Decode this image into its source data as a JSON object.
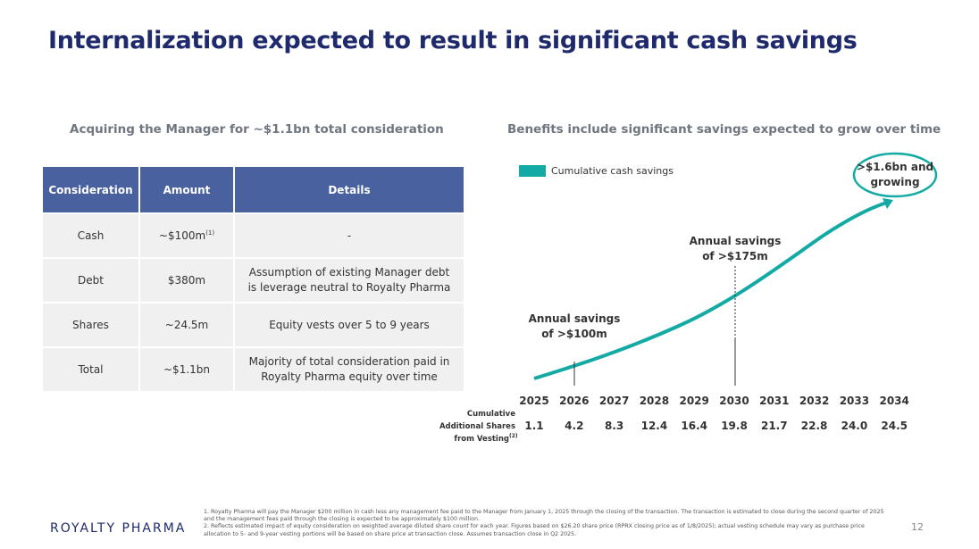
{
  "header": {
    "title": "Internalization expected to result in significant cash savings"
  },
  "left": {
    "heading": "Acquiring the Manager for ~$1.1bn total consideration",
    "table": {
      "columns": [
        "Consideration",
        "Amount",
        "Details"
      ],
      "rows": [
        {
          "consideration": "Cash",
          "amount": "~$100m",
          "note": "(1)",
          "details": "-"
        },
        {
          "consideration": "Debt",
          "amount": "$380m",
          "details": "Assumption of existing Manager debt is leverage neutral to Royalty Pharma"
        },
        {
          "consideration": "Shares",
          "amount": "~24.5m",
          "details": "Equity vests over 5 to 9 years"
        },
        {
          "consideration": "Total",
          "amount": "~$1.1bn",
          "details": "Majority of total consideration paid in Royalty Pharma equity over time"
        }
      ]
    }
  },
  "right": {
    "heading": "Benefits include significant savings expected to grow over time",
    "legend": "Cumulative cash savings",
    "callouts": [
      "Annual savings of >$100m",
      "Annual savings of >$175m",
      ">$1.6bn and growing"
    ],
    "years": [
      "2025",
      "2026",
      "2027",
      "2028",
      "2029",
      "2030",
      "2031",
      "2032",
      "2033",
      "2034"
    ],
    "shares_label": "Cumulative Additional Shares from Vesting",
    "shares_note": "(2)",
    "shares": [
      "1.1",
      "4.2",
      "8.3",
      "12.4",
      "16.4",
      "19.8",
      "21.7",
      "22.8",
      "24.0",
      "24.5"
    ]
  },
  "footer": {
    "logo": "ROYALTY PHARMA",
    "page": "12",
    "footnotes": [
      "1.  Royalty Pharma will pay the Manager $200 million in cash less any management fee paid to the Manager from January 1, 2025 through the closing of the transaction. The transaction is estimated to close during the second quarter of 2025 and the management fees paid through the closing is expected to be approximately $100 million.",
      "2.  Reflects estimated impact of equity consideration on weighted average diluted share count for each year. Figures based on $26.20 share price (RPRX closing price as of 1/8/2025); actual vesting schedule may vary as purchase price allocation to 5- and 9-year vesting portions will be based on share price at transaction close. Assumes transaction close in Q2 2025."
    ]
  }
}
